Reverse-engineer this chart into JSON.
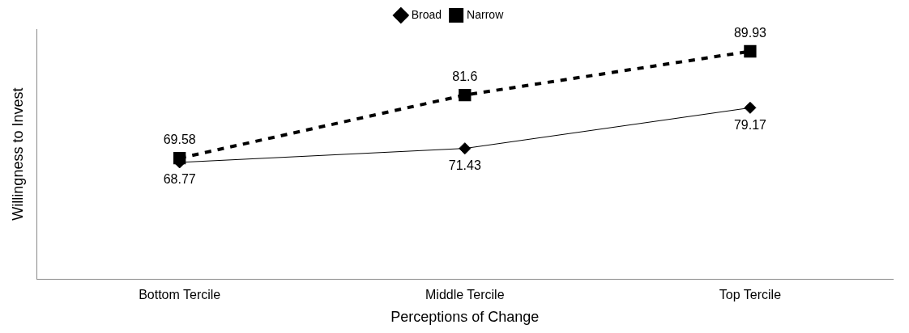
{
  "chart_data": {
    "type": "line",
    "xlabel": "Perceptions of Change",
    "ylabel": "Willingness to Invest",
    "categories": [
      "Bottom Tercile",
      "Middle Tercile",
      "Top Tercile"
    ],
    "series": [
      {
        "name": "Broad",
        "color": "#000000",
        "values": [
          68.77,
          71.43,
          79.17
        ],
        "marker": "diamond",
        "line_style": "solid"
      },
      {
        "name": "Narrow",
        "color": "#000000",
        "values": [
          69.58,
          81.6,
          89.93
        ],
        "marker": "square",
        "line_style": "dashed"
      }
    ],
    "data_labels": true,
    "legend": "top",
    "grid": false
  }
}
